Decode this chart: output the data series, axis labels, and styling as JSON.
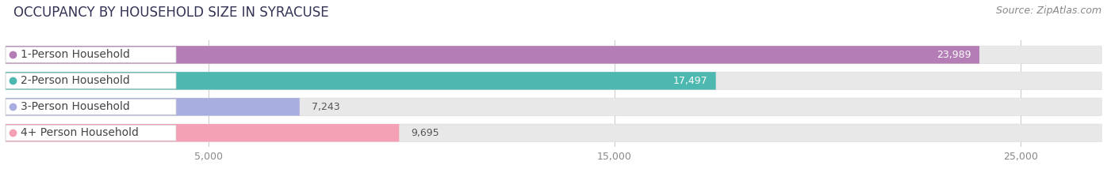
{
  "title": "OCCUPANCY BY HOUSEHOLD SIZE IN SYRACUSE",
  "source": "Source: ZipAtlas.com",
  "categories": [
    "1-Person Household",
    "2-Person Household",
    "3-Person Household",
    "4+ Person Household"
  ],
  "values": [
    23989,
    17497,
    7243,
    9695
  ],
  "bar_colors": [
    "#b57db5",
    "#4db8b0",
    "#a9aee0",
    "#f4a0b5"
  ],
  "label_colors": [
    "#ffffff",
    "#ffffff",
    "#555555",
    "#555555"
  ],
  "background_color": "#ffffff",
  "bar_bg_color": "#e8e8e8",
  "row_bg_color": "#f5f5f5",
  "xlim": [
    0,
    27000
  ],
  "xticks": [
    5000,
    15000,
    25000
  ],
  "title_fontsize": 12,
  "source_fontsize": 9,
  "bar_label_fontsize": 9,
  "category_fontsize": 10
}
